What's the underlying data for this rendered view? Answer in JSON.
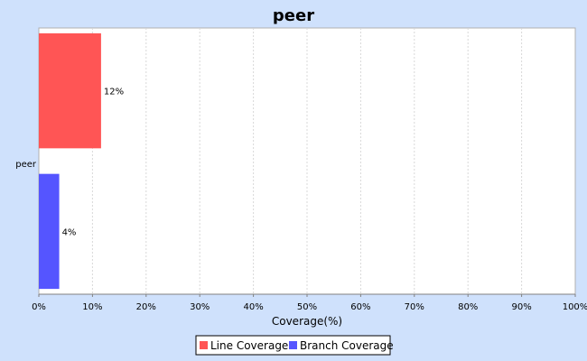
{
  "chart_data": {
    "type": "bar",
    "orientation": "horizontal",
    "title": "peer",
    "categories": [
      "peer"
    ],
    "series": [
      {
        "name": "Line Coverage",
        "values": [
          11.6
        ],
        "label": "12%",
        "color": "#ff5555"
      },
      {
        "name": "Branch Coverage",
        "values": [
          3.8
        ],
        "label": "4%",
        "color": "#5555ff"
      }
    ],
    "xlabel": "Coverage(%)",
    "ylabel": "",
    "xlim": [
      0,
      100
    ],
    "x_ticks": [
      "0%",
      "10%",
      "20%",
      "30%",
      "40%",
      "50%",
      "60%",
      "70%",
      "80%",
      "90%",
      "100%"
    ],
    "grid": true,
    "legend_position": "bottom"
  }
}
